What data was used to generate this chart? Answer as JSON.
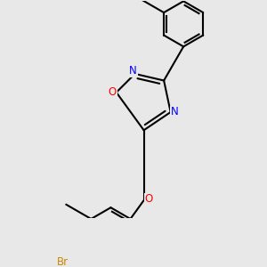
{
  "bg_color": "#e8e8e8",
  "bond_color": "#000000",
  "bond_width": 1.5,
  "atom_colors": {
    "N": "#0000ff",
    "O_ring": "#ff0000",
    "O_ether": "#ff0000",
    "Br": "#cc8800",
    "C": "#000000"
  }
}
